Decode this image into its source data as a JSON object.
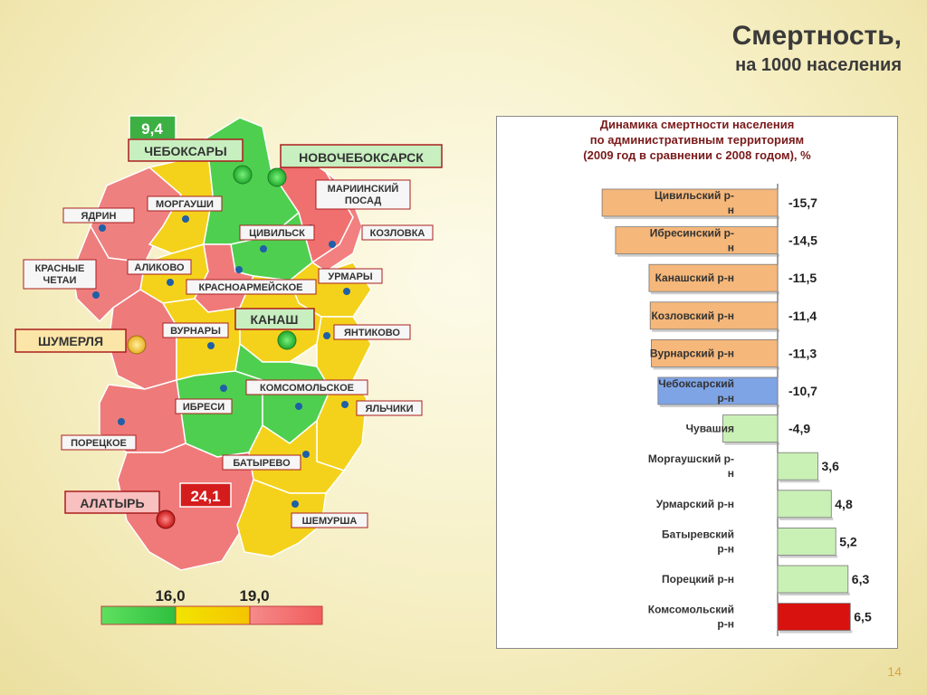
{
  "slide": {
    "title": "Смертность,",
    "subtitle": "на 1000 населения",
    "page_number": "14"
  },
  "colors": {
    "green": "#56d05a",
    "yellow": "#f3d82a",
    "red": "#f2878a",
    "bar_orange": "#f5b77a",
    "bar_blue": "#7fa4e6",
    "bar_green": "#c9f0b5",
    "bar_red": "#d8120e"
  },
  "map": {
    "city_labels": [
      {
        "name": "ЧЕБОКСАРЫ"
      },
      {
        "name": "НОВОЧЕБОКСАРСК"
      },
      {
        "name": "ШУМЕРЛЯ"
      },
      {
        "name": "КАНАШ"
      },
      {
        "name": "АЛАТЫРЬ"
      }
    ],
    "district_labels": [
      {
        "name": "МОРГАУШИ"
      },
      {
        "name": "ЯДРИН"
      },
      {
        "name": "МАРИИНСКИЙ ПОСАД"
      },
      {
        "name": "КОЗЛОВКА"
      },
      {
        "name": "ЦИВИЛЬСК"
      },
      {
        "name": "КРАСНЫЕ ЧЕТАИ"
      },
      {
        "name": "АЛИКОВО"
      },
      {
        "name": "КРАСНОАРМЕЙСКОЕ"
      },
      {
        "name": "УРМАРЫ"
      },
      {
        "name": "ВУРНАРЫ"
      },
      {
        "name": "ЯНТИКОВО"
      },
      {
        "name": "КОМСОМОЛЬСКОЕ"
      },
      {
        "name": "ИБРЕСИ"
      },
      {
        "name": "ЯЛЬЧИКИ"
      },
      {
        "name": "ПОРЕЦКОЕ"
      },
      {
        "name": "БАТЫРЕВО"
      },
      {
        "name": "ШЕМУРША"
      }
    ],
    "value_badges": [
      {
        "value": "9,4",
        "color": "#3cb043"
      },
      {
        "value": "24,1",
        "color": "#d41c1c"
      }
    ],
    "legend": {
      "thresholds": [
        "16,0",
        "19,0"
      ],
      "colors": [
        "#4fcf4f",
        "#f2e000",
        "#f58080"
      ]
    }
  },
  "chart_data": {
    "type": "bar",
    "orientation": "horizontal",
    "title": "Динамика смертности населения по административным территориям (2009 год в сравнении с 2008 годом), %",
    "title_lines": [
      "Динамика смертности населения",
      "по административным территориям",
      "(2009 год в сравнении с 2008 годом), %"
    ],
    "xlim": [
      -16,
      7
    ],
    "categories": [
      {
        "label": "Цивильский р-н",
        "lines": [
          "Цивильский р-",
          "н"
        ],
        "value": -15.7,
        "value_label": "-15,7",
        "color_key": "bar_orange"
      },
      {
        "label": "Ибресинский р-н",
        "lines": [
          "Ибресинский р-",
          "н"
        ],
        "value": -14.5,
        "value_label": "-14,5",
        "color_key": "bar_orange"
      },
      {
        "label": "Канашский р-н",
        "lines": [
          "Канашский р-н"
        ],
        "value": -11.5,
        "value_label": "-11,5",
        "color_key": "bar_orange"
      },
      {
        "label": "Козловский р-н",
        "lines": [
          "Козловский р-н"
        ],
        "value": -11.4,
        "value_label": "-11,4",
        "color_key": "bar_orange"
      },
      {
        "label": "Вурнарский р-н",
        "lines": [
          "Вурнарский р-н"
        ],
        "value": -11.3,
        "value_label": "-11,3",
        "color_key": "bar_orange"
      },
      {
        "label": "Чебоксарский р-н",
        "lines": [
          "Чебоксарский",
          "р-н"
        ],
        "value": -10.7,
        "value_label": "-10,7",
        "color_key": "bar_blue"
      },
      {
        "label": "Чувашия",
        "lines": [
          "Чувашия"
        ],
        "value": -4.9,
        "value_label": "-4,9",
        "color_key": "bar_green"
      },
      {
        "label": "Моргаушский р-н",
        "lines": [
          "Моргаушский р-",
          "н"
        ],
        "value": 3.6,
        "value_label": "3,6",
        "color_key": "bar_green"
      },
      {
        "label": "Урмарский р-н",
        "lines": [
          "Урмарский р-н"
        ],
        "value": 4.8,
        "value_label": "4,8",
        "color_key": "bar_green"
      },
      {
        "label": "Батыревский р-н",
        "lines": [
          "Батыревский",
          "р-н"
        ],
        "value": 5.2,
        "value_label": "5,2",
        "color_key": "bar_green"
      },
      {
        "label": "Порецкий р-н",
        "lines": [
          "Порецкий р-н"
        ],
        "value": 6.3,
        "value_label": "6,3",
        "color_key": "bar_green"
      },
      {
        "label": "Комсомольский р-н",
        "lines": [
          "Комсомольский",
          "р-н"
        ],
        "value": 6.5,
        "value_label": "6,5",
        "color_key": "bar_red"
      }
    ]
  }
}
